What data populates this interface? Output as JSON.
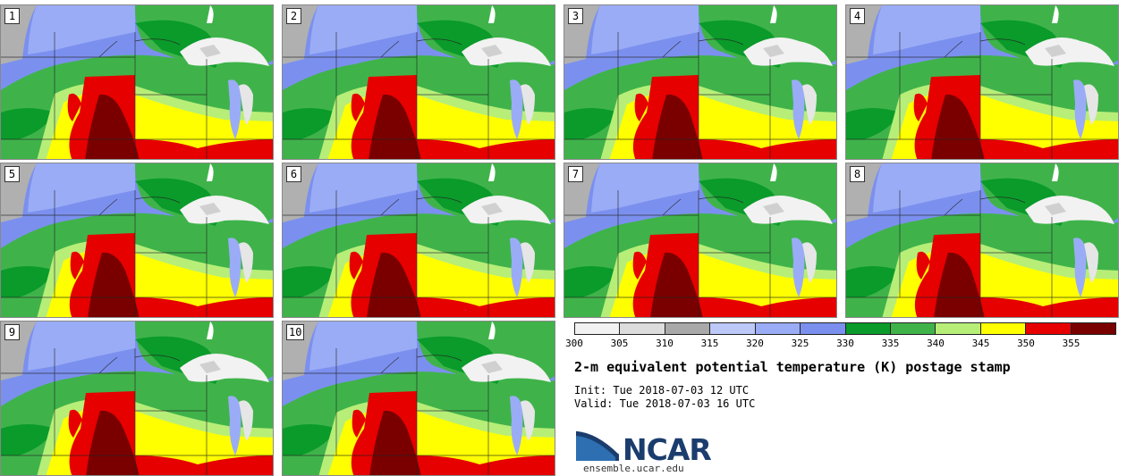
{
  "title": "2-m equivalent potential temperature (K) postage stamp",
  "init": "Init: Tue 2018-07-03 12 UTC",
  "valid": "Valid: Tue 2018-07-03 16 UTC",
  "logo": {
    "name": "NCAR",
    "url": "ensemble.ucar.edu"
  },
  "panels": [
    {
      "label": "1"
    },
    {
      "label": "2"
    },
    {
      "label": "3"
    },
    {
      "label": "4"
    },
    {
      "label": "5"
    },
    {
      "label": "6"
    },
    {
      "label": "7"
    },
    {
      "label": "8"
    },
    {
      "label": "9"
    },
    {
      "label": "10"
    }
  ],
  "colorbar": {
    "unit": "K",
    "ticks": [
      "300",
      "305",
      "310",
      "315",
      "320",
      "325",
      "330",
      "335",
      "340",
      "345",
      "350",
      "355"
    ],
    "colors": [
      "#f2f2f2",
      "#dcdcdc",
      "#a9a9a9",
      "#bcc8f8",
      "#9aacf6",
      "#7b90ee",
      "#0a9b2a",
      "#3fb34a",
      "#b7ee78",
      "#ffff00",
      "#e60000",
      "#7a0000"
    ]
  },
  "map_colors": {
    "background_ocean": "#b0b0b0",
    "cool": "#7b90ee",
    "light_cool": "#9aacf6",
    "green": "#3fb34a",
    "dark_green": "#0a9b2a",
    "light_green": "#b7ee78",
    "yellow": "#ffff00",
    "red": "#e60000",
    "dark_red": "#7a0000",
    "lake": "#f2f2f2"
  }
}
